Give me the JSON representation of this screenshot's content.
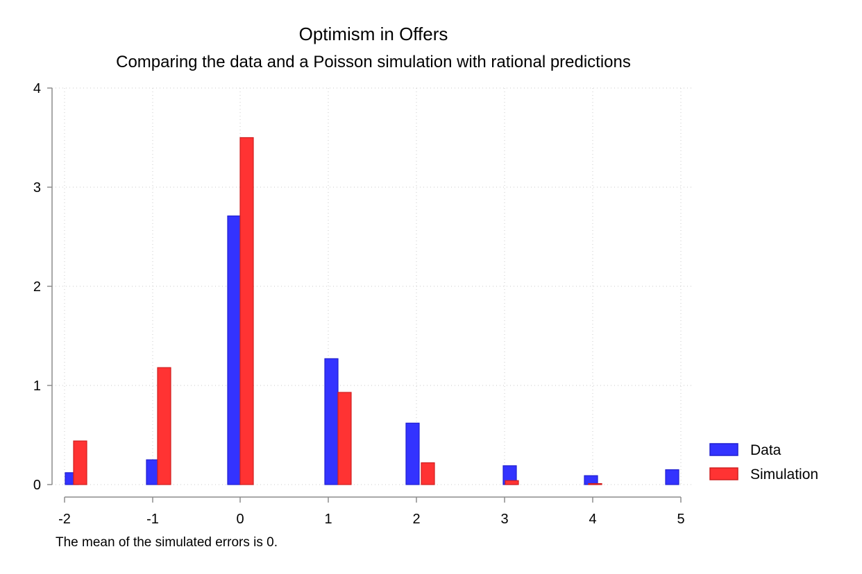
{
  "chart_data": {
    "type": "bar",
    "title": "Optimism in Offers",
    "subtitle": "Comparing the data and a Poisson simulation with rational predictions",
    "note": "The mean of the simulated errors is 0.",
    "xlabel": "",
    "ylabel": "",
    "xlim": [
      -2,
      5
    ],
    "ylim": [
      0,
      4
    ],
    "xticks": [
      "-2",
      "-1",
      "0",
      "1",
      "2",
      "3",
      "4",
      "5"
    ],
    "yticks": [
      "0",
      "1",
      "2",
      "3",
      "4"
    ],
    "grid": true,
    "legend_position": "right",
    "series": [
      {
        "name": "Data",
        "color": "#3333ff",
        "points": [
          {
            "x": -2,
            "y": 0.12
          },
          {
            "x": -1,
            "y": 0.25
          },
          {
            "x": 0,
            "y": 2.71
          },
          {
            "x": 1,
            "y": 1.27
          },
          {
            "x": 2,
            "y": 0.62
          },
          {
            "x": 3,
            "y": 0.19
          },
          {
            "x": 4,
            "y": 0.09
          },
          {
            "x": 5,
            "y": 0.15
          }
        ]
      },
      {
        "name": "Simulation",
        "color": "#ff3333",
        "points": [
          {
            "x": -2,
            "y": 0.44
          },
          {
            "x": -1,
            "y": 1.18
          },
          {
            "x": 0,
            "y": 3.5
          },
          {
            "x": 1,
            "y": 0.93
          },
          {
            "x": 2,
            "y": 0.22
          },
          {
            "x": 3,
            "y": 0.04
          },
          {
            "x": 4,
            "y": 0.01
          }
        ]
      }
    ]
  }
}
